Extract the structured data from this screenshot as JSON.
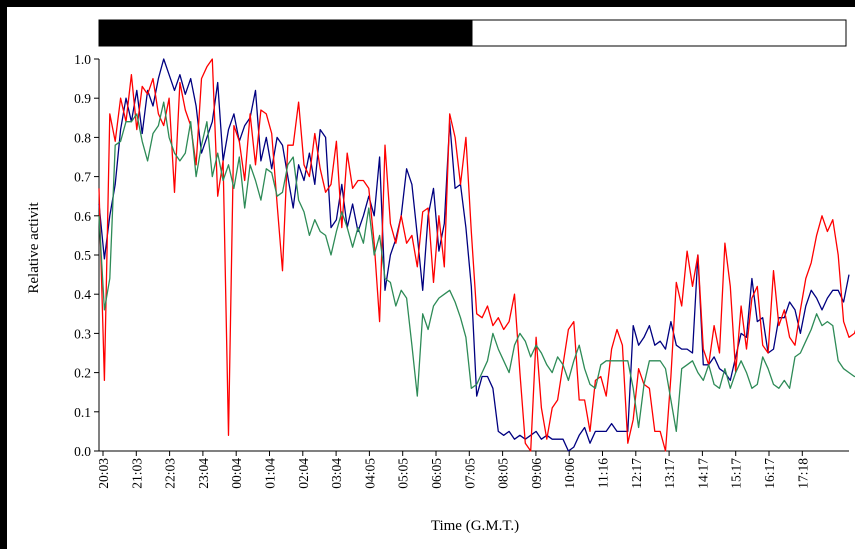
{
  "chart_data": {
    "type": "line",
    "title": "",
    "xlabel": "Time (G.M.T.)",
    "ylabel": "Relative activit",
    "ylim": [
      0,
      1.0
    ],
    "yticks": [
      "0.0",
      "0.1",
      "0.2",
      "0.3",
      "0.4",
      "0.5",
      "0.6",
      "0.7",
      "0.8",
      "0.9",
      "1.0"
    ],
    "xticks": [
      "20:03",
      "21:03",
      "22:03",
      "23:04",
      "00:04",
      "01:04",
      "02:04",
      "03:04",
      "04:05",
      "05:05",
      "06:05",
      "07:05",
      "08:05",
      "09:06",
      "10:06",
      "11:16",
      "12:17",
      "13:17",
      "14:17",
      "15:17",
      "16:17",
      "17:18"
    ],
    "light_dark_bar": {
      "dark_fraction": 0.5,
      "dark_color": "#000000",
      "light_color": "#ffffff"
    },
    "grid": false,
    "legend": "none",
    "series": [
      {
        "color": "#000080",
        "values": [
          0.63,
          0.49,
          0.6,
          0.68,
          0.82,
          0.9,
          0.84,
          0.92,
          0.81,
          0.92,
          0.88,
          0.95,
          1.0,
          0.96,
          0.92,
          0.96,
          0.91,
          0.95,
          0.88,
          0.76,
          0.8,
          0.84,
          0.94,
          0.74,
          0.82,
          0.86,
          0.79,
          0.83,
          0.85,
          0.92,
          0.74,
          0.8,
          0.72,
          0.8,
          0.78,
          0.7,
          0.62,
          0.73,
          0.69,
          0.76,
          0.68,
          0.82,
          0.8,
          0.57,
          0.59,
          0.68,
          0.57,
          0.63,
          0.56,
          0.6,
          0.65,
          0.6,
          0.75,
          0.41,
          0.5,
          0.54,
          0.6,
          0.72,
          0.68,
          0.55,
          0.41,
          0.6,
          0.67,
          0.51,
          0.58,
          0.84,
          0.67,
          0.68,
          0.57,
          0.42,
          0.14,
          0.19,
          0.19,
          0.16,
          0.05,
          0.04,
          0.05,
          0.03,
          0.04,
          0.03,
          0.04,
          0.05,
          0.03,
          0.04,
          0.03,
          0.03,
          0.03,
          0.0,
          0.01,
          0.04,
          0.06,
          0.02,
          0.05,
          0.05,
          0.05,
          0.07,
          0.05,
          0.05,
          0.05,
          0.32,
          0.27,
          0.29,
          0.32,
          0.27,
          0.28,
          0.26,
          0.33,
          0.27,
          0.26,
          0.26,
          0.25,
          0.5,
          0.22,
          0.22,
          0.24,
          0.21,
          0.2,
          0.18,
          0.24,
          0.3,
          0.29,
          0.44,
          0.33,
          0.34,
          0.25,
          0.26,
          0.34,
          0.34,
          0.38,
          0.36,
          0.3,
          0.37,
          0.41,
          0.39,
          0.36,
          0.39,
          0.41,
          0.41,
          0.38,
          0.45
        ]
      },
      {
        "color": "#ff0000",
        "values": [
          0.67,
          0.18,
          0.86,
          0.79,
          0.9,
          0.84,
          0.96,
          0.82,
          0.93,
          0.91,
          0.95,
          0.86,
          0.83,
          0.9,
          0.66,
          0.94,
          0.87,
          0.83,
          0.73,
          0.95,
          0.98,
          1.0,
          0.65,
          0.74,
          0.04,
          0.83,
          0.79,
          0.69,
          0.86,
          0.73,
          0.87,
          0.86,
          0.81,
          0.63,
          0.46,
          0.78,
          0.78,
          0.89,
          0.73,
          0.7,
          0.81,
          0.72,
          0.66,
          0.68,
          0.79,
          0.57,
          0.76,
          0.67,
          0.69,
          0.69,
          0.67,
          0.53,
          0.33,
          0.78,
          0.58,
          0.53,
          0.6,
          0.53,
          0.55,
          0.47,
          0.61,
          0.62,
          0.43,
          0.6,
          0.47,
          0.86,
          0.8,
          0.68,
          0.8,
          0.56,
          0.35,
          0.34,
          0.37,
          0.32,
          0.34,
          0.31,
          0.33,
          0.4,
          0.2,
          0.02,
          0.0,
          0.29,
          0.11,
          0.03,
          0.11,
          0.13,
          0.22,
          0.31,
          0.33,
          0.13,
          0.13,
          0.05,
          0.18,
          0.19,
          0.14,
          0.26,
          0.31,
          0.27,
          0.02,
          0.08,
          0.21,
          0.17,
          0.16,
          0.05,
          0.05,
          0.0,
          0.19,
          0.43,
          0.37,
          0.51,
          0.42,
          0.5,
          0.26,
          0.22,
          0.32,
          0.25,
          0.53,
          0.42,
          0.2,
          0.37,
          0.26,
          0.39,
          0.42,
          0.27,
          0.25,
          0.46,
          0.32,
          0.36,
          0.29,
          0.27,
          0.36,
          0.44,
          0.48,
          0.55,
          0.6,
          0.56,
          0.59,
          0.5,
          0.33,
          0.29,
          0.3,
          0.34,
          0.47,
          0.47
        ]
      },
      {
        "color": "#2e8b57",
        "values": [
          0.6,
          0.36,
          0.44,
          0.78,
          0.79,
          0.84,
          0.84,
          0.86,
          0.79,
          0.74,
          0.81,
          0.83,
          0.89,
          0.8,
          0.76,
          0.74,
          0.76,
          0.84,
          0.7,
          0.78,
          0.84,
          0.7,
          0.76,
          0.69,
          0.73,
          0.67,
          0.75,
          0.62,
          0.73,
          0.69,
          0.64,
          0.72,
          0.71,
          0.65,
          0.66,
          0.73,
          0.75,
          0.64,
          0.61,
          0.55,
          0.59,
          0.56,
          0.55,
          0.5,
          0.56,
          0.61,
          0.57,
          0.52,
          0.57,
          0.53,
          0.62,
          0.5,
          0.55,
          0.44,
          0.43,
          0.37,
          0.41,
          0.39,
          0.27,
          0.14,
          0.35,
          0.31,
          0.37,
          0.39,
          0.4,
          0.41,
          0.38,
          0.34,
          0.29,
          0.16,
          0.17,
          0.2,
          0.23,
          0.3,
          0.26,
          0.23,
          0.2,
          0.27,
          0.3,
          0.28,
          0.24,
          0.27,
          0.25,
          0.22,
          0.2,
          0.24,
          0.22,
          0.18,
          0.23,
          0.27,
          0.21,
          0.17,
          0.16,
          0.22,
          0.23,
          0.23,
          0.23,
          0.23,
          0.23,
          0.16,
          0.06,
          0.17,
          0.23,
          0.23,
          0.23,
          0.21,
          0.13,
          0.05,
          0.21,
          0.22,
          0.23,
          0.2,
          0.18,
          0.22,
          0.17,
          0.16,
          0.21,
          0.16,
          0.2,
          0.23,
          0.2,
          0.16,
          0.17,
          0.24,
          0.21,
          0.17,
          0.16,
          0.18,
          0.16,
          0.24,
          0.25,
          0.28,
          0.31,
          0.35,
          0.32,
          0.33,
          0.32,
          0.23,
          0.21,
          0.2,
          0.19,
          0.19
        ]
      }
    ]
  }
}
